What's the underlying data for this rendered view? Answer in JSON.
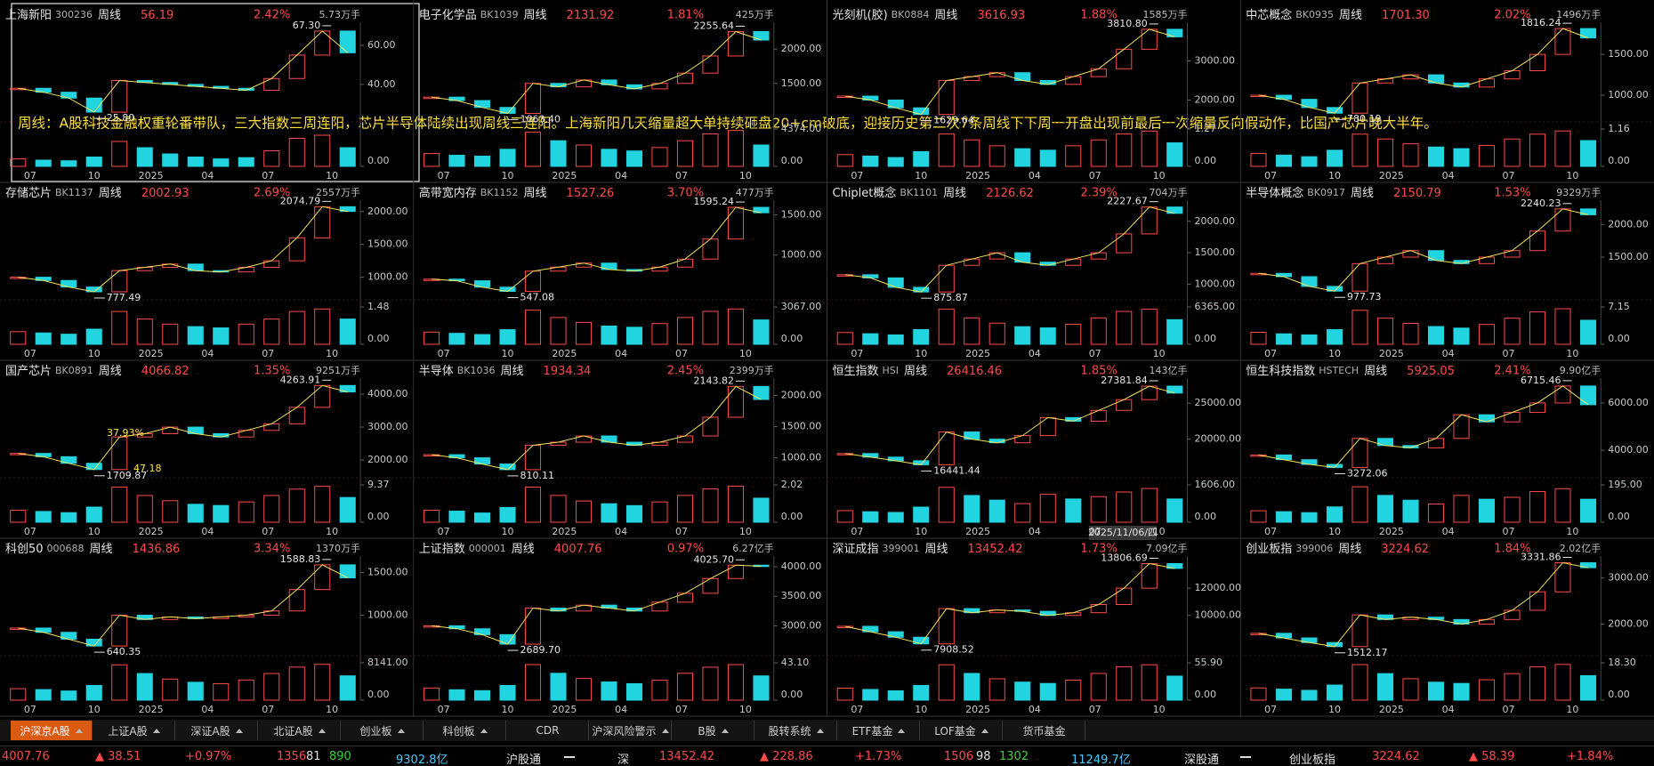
{
  "period": "周线",
  "x_labels": [
    "07",
    "10",
    "2025",
    "04",
    "07",
    "10"
  ],
  "note": "周线：A股科技金融权重轮番带队，三大指数三周连阳，芯片半导体陆续出现周线三连阳。上海新阳几天缩量超大单持续砸盘20+cm破底，迎接历史第二次7条周线下下周一开盘出现前最后一次缩量反向假动作，比国产芯片晚大半年。",
  "tooltip": "2025/11/06/四",
  "panels": [
    {
      "name": "上海新阳",
      "code": "300236",
      "price": "56.19",
      "change": "2.42%",
      "volume": "5.73万手",
      "high": "67.30",
      "low": "25.80",
      "ylim": [
        24,
        70
      ],
      "yticks": [
        {
          "value": 60,
          "label": "60.00"
        },
        {
          "value": 40,
          "label": "40.00"
        }
      ],
      "values": [
        38,
        36,
        33,
        25.8,
        42,
        41,
        40,
        39,
        38,
        37,
        43,
        55,
        67.3,
        56.19
      ],
      "vol_ylim": [
        0,
        60
      ],
      "vol_yticks": [
        {
          "value": 0,
          "label": "0.00"
        }
      ],
      "volumes": [
        12,
        10,
        9,
        15,
        40,
        30,
        20,
        15,
        12,
        14,
        25,
        45,
        50,
        30
      ]
    },
    {
      "name": "电子化学品",
      "code": "BK1039",
      "price": "2131.92",
      "change": "1.81%",
      "volume": "425万手",
      "high": "2255.64",
      "low": "1063.40",
      "ylim": [
        1030,
        2340
      ],
      "yticks": [
        {
          "value": 2000,
          "label": "2000.00"
        },
        {
          "value": 1500,
          "label": "1500.00"
        }
      ],
      "values": [
        1300,
        1250,
        1150,
        1063.4,
        1500,
        1450,
        1550,
        1480,
        1420,
        1500,
        1650,
        1900,
        2255.64,
        2131.92
      ],
      "vol_ylim": [
        0,
        4374
      ],
      "vol_yticks": [
        {
          "value": 4374,
          "label": "4374.00"
        },
        {
          "value": 0,
          "label": "0.00"
        }
      ],
      "volumes": [
        1500,
        1300,
        1200,
        2000,
        4000,
        3000,
        2500,
        2000,
        1800,
        2200,
        3000,
        3800,
        4200,
        2500
      ]
    },
    {
      "name": "光刻机(胶)",
      "code": "BK0884",
      "price": "3616.93",
      "change": "1.88%",
      "volume": "1585万手",
      "high": "3810.80",
      "low": "1629.64",
      "ylim": [
        1600,
        3900
      ],
      "yticks": [
        {
          "value": 3000,
          "label": "3000.00"
        },
        {
          "value": 2000,
          "label": "2000.00"
        }
      ],
      "values": [
        2100,
        2000,
        1800,
        1629.64,
        2500,
        2600,
        2700,
        2500,
        2400,
        2600,
        2800,
        3300,
        3810.8,
        3616.93
      ],
      "vol_ylim": [
        0,
        1.27
      ],
      "vol_yticks": [
        {
          "value": 1.27,
          "label": "1.27"
        },
        {
          "value": 0,
          "label": "0.00"
        }
      ],
      "volumes": [
        0.4,
        0.35,
        0.3,
        0.5,
        1.1,
        0.9,
        0.7,
        0.6,
        0.55,
        0.7,
        0.9,
        1.1,
        1.2,
        0.8
      ]
    },
    {
      "name": "中芯概念",
      "code": "BK0935",
      "price": "1701.30",
      "change": "2.02%",
      "volume": "1496万手",
      "high": "1816.24",
      "low": "780.19",
      "ylim": [
        750,
        1850
      ],
      "yticks": [
        {
          "value": 1500,
          "label": "1500.00"
        },
        {
          "value": 1000,
          "label": "1000.00"
        }
      ],
      "values": [
        1000,
        950,
        850,
        780.19,
        1150,
        1200,
        1250,
        1150,
        1100,
        1200,
        1300,
        1500,
        1816.24,
        1701.3
      ],
      "vol_ylim": [
        0,
        1.16
      ],
      "vol_yticks": [
        {
          "value": 1.16,
          "label": "1.16"
        },
        {
          "value": 0,
          "label": "0.00"
        }
      ],
      "volumes": [
        0.4,
        0.35,
        0.3,
        0.5,
        1.0,
        0.85,
        0.7,
        0.6,
        0.55,
        0.65,
        0.85,
        1.0,
        1.1,
        0.8
      ]
    },
    {
      "name": "存储芯片",
      "code": "BK1137",
      "price": "2002.93",
      "change": "2.69%",
      "volume": "2557万手",
      "high": "2074.79",
      "low": "777.49",
      "ylim": [
        750,
        2120
      ],
      "yticks": [
        {
          "value": 2000,
          "label": "2000.00"
        },
        {
          "value": 1500,
          "label": "1500.00"
        },
        {
          "value": 1000,
          "label": "1000.00"
        }
      ],
      "values": [
        1000,
        950,
        850,
        777.49,
        1100,
        1150,
        1200,
        1100,
        1080,
        1150,
        1250,
        1600,
        2074.79,
        2002.93
      ],
      "vol_ylim": [
        0,
        1.48
      ],
      "vol_yticks": [
        {
          "value": 1.48,
          "label": "1.48"
        },
        {
          "value": 0,
          "label": "0.00"
        }
      ],
      "volumes": [
        0.5,
        0.45,
        0.4,
        0.6,
        1.3,
        1.0,
        0.8,
        0.7,
        0.65,
        0.8,
        1.0,
        1.3,
        1.4,
        1.0
      ]
    },
    {
      "name": "高带宽内存",
      "code": "BK1152",
      "price": "1527.26",
      "change": "3.70%",
      "volume": "477万手",
      "high": "1595.24",
      "low": "547.08",
      "ylim": [
        520,
        1640
      ],
      "yticks": [
        {
          "value": 1500,
          "label": "1500.00"
        },
        {
          "value": 1000,
          "label": "1000.00"
        }
      ],
      "values": [
        700,
        680,
        600,
        547.08,
        800,
        850,
        900,
        820,
        800,
        850,
        950,
        1200,
        1595.24,
        1527.26
      ],
      "vol_ylim": [
        0,
        3067
      ],
      "vol_yticks": [
        {
          "value": 3067,
          "label": "3067.00"
        },
        {
          "value": 0,
          "label": "0.00"
        }
      ],
      "volumes": [
        1000,
        900,
        800,
        1200,
        2800,
        2200,
        1800,
        1500,
        1400,
        1700,
        2200,
        2700,
        2900,
        2000
      ]
    },
    {
      "name": "Chiplet概念",
      "code": "BK1101",
      "price": "2126.62",
      "change": "2.39%",
      "volume": "704万手",
      "high": "2227.67",
      "low": "875.87",
      "ylim": [
        850,
        2280
      ],
      "yticks": [
        {
          "value": 2000,
          "label": "2000.00"
        },
        {
          "value": 1500,
          "label": "1500.00"
        },
        {
          "value": 1000,
          "label": "1000.00"
        }
      ],
      "values": [
        1150,
        1100,
        950,
        875.87,
        1300,
        1400,
        1500,
        1350,
        1300,
        1400,
        1500,
        1800,
        2227.67,
        2126.62
      ],
      "vol_ylim": [
        0,
        6365
      ],
      "vol_yticks": [
        {
          "value": 6365,
          "label": "6365.00"
        },
        {
          "value": 0,
          "label": "0.00"
        }
      ],
      "volumes": [
        2000,
        1800,
        1600,
        2500,
        6000,
        4500,
        3600,
        3000,
        2800,
        3400,
        4500,
        5600,
        6000,
        4200
      ]
    },
    {
      "name": "半导体概念",
      "code": "BK0917",
      "price": "2150.79",
      "change": "1.53%",
      "volume": "9329万手",
      "high": "2240.23",
      "low": "977.73",
      "ylim": [
        940,
        2320
      ],
      "yticks": [
        {
          "value": 2000,
          "label": "2000.00"
        },
        {
          "value": 1500,
          "label": "1500.00"
        }
      ],
      "values": [
        1250,
        1200,
        1050,
        977.73,
        1400,
        1500,
        1600,
        1450,
        1400,
        1500,
        1600,
        1900,
        2240.23,
        2150.79
      ],
      "vol_ylim": [
        0,
        7.15
      ],
      "vol_yticks": [
        {
          "value": 7.15,
          "label": "7.15"
        },
        {
          "value": 0,
          "label": "0.00"
        }
      ],
      "volumes": [
        2.3,
        2.0,
        1.8,
        2.8,
        6.5,
        5.0,
        4.0,
        3.4,
        3.1,
        3.8,
        5.0,
        6.2,
        6.8,
        4.6
      ]
    },
    {
      "name": "国产芯片",
      "code": "BK0891",
      "price": "4066.82",
      "change": "1.35%",
      "volume": "9251万手",
      "high": "4263.91",
      "low": "1709.87",
      "annotations": [
        "37.93%",
        "47.18"
      ],
      "ylim": [
        1650,
        4380
      ],
      "yticks": [
        {
          "value": 4000,
          "label": "4000.00"
        },
        {
          "value": 3000,
          "label": "3000.00"
        },
        {
          "value": 2000,
          "label": "2000.00"
        }
      ],
      "values": [
        2200,
        2100,
        1900,
        1709.87,
        2700,
        2800,
        3000,
        2800,
        2700,
        2900,
        3100,
        3600,
        4263.91,
        4066.82
      ],
      "vol_ylim": [
        0,
        9.37
      ],
      "vol_yticks": [
        {
          "value": 9.37,
          "label": "9.37"
        },
        {
          "value": 0,
          "label": "0.00"
        }
      ],
      "volumes": [
        3.0,
        2.7,
        2.4,
        3.8,
        8.8,
        6.7,
        5.4,
        4.5,
        4.2,
        5.1,
        6.7,
        8.3,
        9.0,
        6.2
      ]
    },
    {
      "name": "半导体",
      "code": "BK1036",
      "price": "1934.34",
      "change": "2.45%",
      "volume": "2399万手",
      "high": "2143.82",
      "low": "810.11",
      "ylim": [
        780,
        2220
      ],
      "yticks": [
        {
          "value": 2000,
          "label": "2000.00"
        },
        {
          "value": 1500,
          "label": "1500.00"
        },
        {
          "value": 1000,
          "label": "1000.00"
        }
      ],
      "values": [
        1050,
        1000,
        900,
        810.11,
        1200,
        1250,
        1350,
        1250,
        1200,
        1250,
        1350,
        1650,
        2143.82,
        1934.34
      ],
      "vol_ylim": [
        0,
        2.02
      ],
      "vol_yticks": [
        {
          "value": 2.02,
          "label": "2.02"
        },
        {
          "value": 0,
          "label": "0.00"
        }
      ],
      "volumes": [
        0.65,
        0.6,
        0.5,
        0.8,
        1.9,
        1.45,
        1.15,
        1.0,
        0.9,
        1.1,
        1.45,
        1.8,
        1.95,
        1.3
      ]
    },
    {
      "name": "恒生指数",
      "code": "HSI",
      "price": "26416.46",
      "change": "1.85%",
      "volume": "143亿手",
      "high": "27381.84",
      "low": "16441.44",
      "ylim": [
        15500,
        28000
      ],
      "yticks": [
        {
          "value": 25000,
          "label": "25000.00"
        },
        {
          "value": 20000,
          "label": "20000.00"
        }
      ],
      "values": [
        18000,
        17500,
        17000,
        16441.44,
        21000,
        20000,
        19500,
        20500,
        23000,
        22500,
        24000,
        25500,
        27381.84,
        26416.46
      ],
      "vol_ylim": [
        0,
        1606
      ],
      "vol_yticks": [
        {
          "value": 1606,
          "label": "1606.00"
        },
        {
          "value": 0,
          "label": "0.00"
        }
      ],
      "volumes": [
        500,
        450,
        420,
        650,
        1500,
        1150,
        950,
        800,
        1200,
        1000,
        1100,
        1300,
        1450,
        1000
      ]
    },
    {
      "name": "恒生科技指数",
      "code": "HSTECH",
      "price": "5925.05",
      "change": "2.41%",
      "volume": "9.90亿手",
      "high": "6715.46",
      "low": "3272.06",
      "ylim": [
        3100,
        6900
      ],
      "yticks": [
        {
          "value": 6000,
          "label": "6000.00"
        },
        {
          "value": 4000,
          "label": "4000.00"
        }
      ],
      "values": [
        3800,
        3600,
        3400,
        3272.06,
        4500,
        4200,
        4100,
        4500,
        5500,
        5200,
        5600,
        6000,
        6715.46,
        5925.05
      ],
      "vol_ylim": [
        0,
        195
      ],
      "vol_yticks": [
        {
          "value": 195,
          "label": "195.00"
        },
        {
          "value": 0,
          "label": "0.00"
        }
      ],
      "volumes": [
        60,
        55,
        50,
        80,
        185,
        140,
        115,
        95,
        140,
        120,
        130,
        160,
        175,
        120
      ]
    },
    {
      "name": "科创50",
      "code": "000688",
      "price": "1436.86",
      "change": "3.34%",
      "volume": "1370万手",
      "high": "1588.83",
      "low": "640.35",
      "ylim": [
        600,
        1650
      ],
      "yticks": [
        {
          "value": 1500,
          "label": "1500.00"
        },
        {
          "value": 1000,
          "label": "1000.00"
        }
      ],
      "values": [
        850,
        800,
        720,
        640.35,
        1000,
        950,
        980,
        960,
        980,
        1000,
        1050,
        1300,
        1588.83,
        1436.86
      ],
      "vol_ylim": [
        0,
        8141
      ],
      "vol_yticks": [
        {
          "value": 8141,
          "label": "8141.00"
        },
        {
          "value": 0,
          "label": "0.00"
        }
      ],
      "volumes": [
        2500,
        2300,
        2000,
        3200,
        7700,
        5800,
        4600,
        3900,
        3600,
        4400,
        5800,
        7200,
        7800,
        5300
      ]
    },
    {
      "name": "上证指数",
      "code": "000001",
      "price": "4007.76",
      "change": "0.97%",
      "volume": "6.27亿手",
      "high": "4025.70",
      "low": "2689.70",
      "ylim": [
        2600,
        4120
      ],
      "yticks": [
        {
          "value": 4000,
          "label": "4000.00"
        },
        {
          "value": 3500,
          "label": "3500.00"
        },
        {
          "value": 3000,
          "label": "3000.00"
        }
      ],
      "values": [
        3000,
        2950,
        2850,
        2689.7,
        3300,
        3250,
        3350,
        3300,
        3250,
        3400,
        3550,
        3800,
        4025.7,
        4007.76
      ],
      "vol_ylim": [
        0,
        43.1
      ],
      "vol_yticks": [
        {
          "value": 43.1,
          "label": "43.10"
        },
        {
          "value": 0,
          "label": "0.00"
        }
      ],
      "volumes": [
        14,
        12,
        11,
        17,
        41,
        31,
        25,
        21,
        19,
        23,
        31,
        38,
        41,
        28
      ]
    },
    {
      "name": "深证成指",
      "code": "399001",
      "price": "13452.42",
      "change": "1.73%",
      "volume": "7.09亿手",
      "high": "13806.69",
      "low": "7908.52",
      "ylim": [
        7500,
        14100
      ],
      "yticks": [
        {
          "value": 12000,
          "label": "12000.00"
        },
        {
          "value": 10000,
          "label": "10000.00"
        }
      ],
      "values": [
        9200,
        8800,
        8400,
        7908.52,
        10500,
        10200,
        10400,
        10300,
        10000,
        10200,
        10800,
        12000,
        13806.69,
        13452.42
      ],
      "vol_ylim": [
        0,
        55.9
      ],
      "vol_yticks": [
        {
          "value": 55.9,
          "label": "55.90"
        },
        {
          "value": 0,
          "label": "0.00"
        }
      ],
      "volumes": [
        18,
        16,
        14,
        22,
        53,
        40,
        32,
        27,
        25,
        30,
        40,
        50,
        53,
        36
      ]
    },
    {
      "name": "创业板指",
      "code": "399006",
      "price": "3224.62",
      "change": "1.84%",
      "volume": "2.02亿手",
      "high": "3331.86",
      "low": "1512.17",
      "ylim": [
        1450,
        3400
      ],
      "yticks": [
        {
          "value": 3000,
          "label": "3000.00"
        },
        {
          "value": 2000,
          "label": "2000.00"
        }
      ],
      "values": [
        1800,
        1700,
        1600,
        1512.17,
        2200,
        2100,
        2150,
        2100,
        2000,
        2100,
        2300,
        2700,
        3331.86,
        3224.62
      ],
      "vol_ylim": [
        0,
        18.3
      ],
      "vol_yticks": [
        {
          "value": 18.3,
          "label": "18.30"
        },
        {
          "value": 0,
          "label": "0.00"
        }
      ],
      "volumes": [
        6,
        5.4,
        4.8,
        7.4,
        17.4,
        13,
        10.5,
        8.8,
        8.2,
        10,
        13,
        16.3,
        17.5,
        12
      ]
    }
  ],
  "tabs": [
    {
      "label": "沪深京A股",
      "menu": true
    },
    {
      "label": "上证A股",
      "menu": true
    },
    {
      "label": "深证A股",
      "menu": true
    },
    {
      "label": "北证A股",
      "menu": true
    },
    {
      "label": "创业板",
      "menu": true
    },
    {
      "label": "科创板",
      "menu": true
    },
    {
      "label": "CDR",
      "menu": false
    },
    {
      "label": "沪深风险警示",
      "menu": true
    },
    {
      "label": "B股",
      "menu": true
    },
    {
      "label": "股转系统",
      "menu": true
    },
    {
      "label": "ETF基金",
      "menu": true
    },
    {
      "label": "LOF基金",
      "menu": true
    },
    {
      "label": "货币基金",
      "menu": false
    }
  ],
  "status": [
    {
      "text": "4007.76",
      "color": "#ff4a4a"
    },
    {
      "text": "▲ 38.51",
      "color": "#ff4a4a"
    },
    {
      "text": "+0.97%",
      "color": "#ff4a4a"
    },
    {
      "text": "1356",
      "color": "#ff4a4a"
    },
    {
      "text": "81",
      "color": "#e0e0e0"
    },
    {
      "text": "890",
      "color": "#3ad13a"
    },
    {
      "text": "9302.8亿",
      "color": "#4cc8ff"
    },
    {
      "text": "沪股通",
      "color": "#e0e0e0"
    },
    {
      "text": "深",
      "color": "#e0e0e0"
    },
    {
      "text": "13452.42",
      "color": "#ff4a4a"
    },
    {
      "text": "▲ 228.86",
      "color": "#ff4a4a"
    },
    {
      "text": "+1.73%",
      "color": "#ff4a4a"
    },
    {
      "text": "1506",
      "color": "#ff4a4a"
    },
    {
      "text": "98",
      "color": "#e0e0e0"
    },
    {
      "text": "1302",
      "color": "#3ad13a"
    },
    {
      "text": "11249.7亿",
      "color": "#4cc8ff"
    },
    {
      "text": "深股通",
      "color": "#e0e0e0"
    },
    {
      "text": "创业板指",
      "color": "#e0e0e0"
    },
    {
      "text": "3224.62",
      "color": "#ff4a4a"
    },
    {
      "text": "▲ 58.39",
      "color": "#ff4a4a"
    },
    {
      "text": "+1.84%",
      "color": "#ff4a4a"
    }
  ]
}
